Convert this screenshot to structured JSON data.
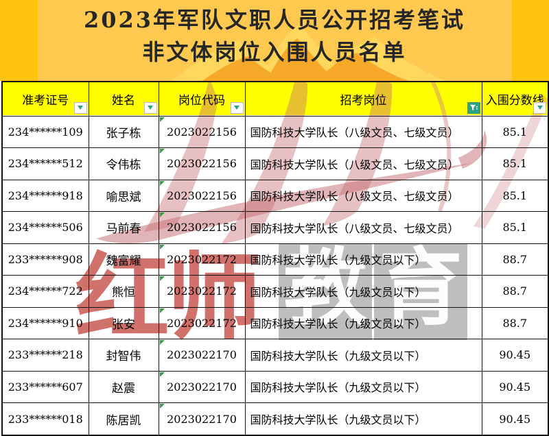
{
  "banner": {
    "title_line1": "2023年军队文职人员公开招考笔试",
    "title_line2": "非文体岗位入围人员名单"
  },
  "table": {
    "columns": [
      {
        "label": "准考证号",
        "filter": "dropdown"
      },
      {
        "label": "姓名",
        "filter": "dropdown"
      },
      {
        "label": "岗位代码",
        "filter": "dropdown"
      },
      {
        "label": "招考岗位",
        "filter": "funnel"
      },
      {
        "label": "入围分数线",
        "filter": "dropdown"
      }
    ],
    "rows": [
      [
        "234******109",
        "张子栋",
        "2023022156",
        "国防科技大学队长（八级文员、七级文员）",
        "85.1"
      ],
      [
        "234******512",
        "令伟栋",
        "2023022156",
        "国防科技大学队长（八级文员、七级文员）",
        "85.1"
      ],
      [
        "234******918",
        "喻思斌",
        "2023022156",
        "国防科技大学队长（八级文员、七级文员）",
        "85.1"
      ],
      [
        "234******506",
        "马前春",
        "2023022156",
        "国防科技大学队长（八级文员、七级文员）",
        "85.1"
      ],
      [
        "233******908",
        "魏富耀",
        "2023022172",
        "国防科技大学队长（九级文员以下）",
        "88.7"
      ],
      [
        "234******722",
        "熊恒",
        "2023022172",
        "国防科技大学队长（九级文员以下）",
        "88.7"
      ],
      [
        "234******910",
        "张安",
        "2023022172",
        "国防科技大学队长（九级文员以下）",
        "88.7"
      ],
      [
        "233******218",
        "封智伟",
        "2023022170",
        "国防科技大学队长（九级文员以下）",
        "90.45"
      ],
      [
        "233******607",
        "赵震",
        "2023022170",
        "国防科技大学队长（九级文员以下）",
        "90.45"
      ],
      [
        "233******018",
        "陈居凯",
        "2023022170",
        "国防科技大学队长（九级文员以下）",
        "90.45"
      ]
    ]
  },
  "watermark": {
    "chars": [
      "红",
      "师",
      "教",
      "育"
    ]
  },
  "colors": {
    "banner_bg": "#ffc30d",
    "banner_inner": "#ffc94f",
    "banner_mountain_light": "#ffd95f",
    "banner_mountain_orange": "#f6a525",
    "header_bg": "#ffff00",
    "filter_teal": "#2fa284",
    "corner_green": "#2f9e44",
    "watermark_pink": "#c4696f",
    "watermark_red": "#bf3a32",
    "watermark_gray": "#b5b5b5"
  }
}
